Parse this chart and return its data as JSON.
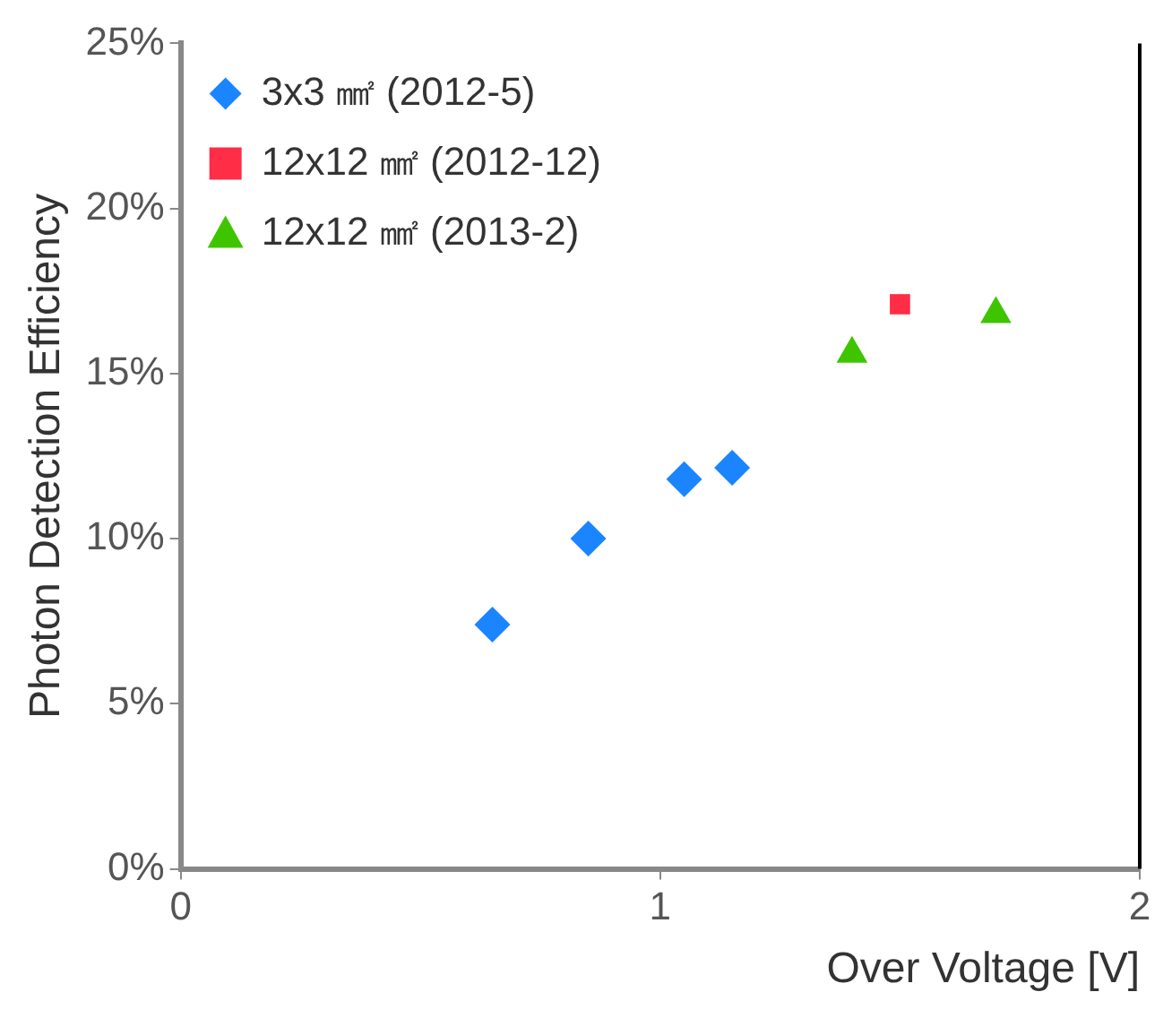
{
  "chart_data": {
    "type": "scatter",
    "xlabel": "Over Voltage [V]",
    "ylabel": "Photon Detection Efficiency",
    "xlim": [
      0,
      2
    ],
    "xticks": [
      0,
      1,
      2
    ],
    "ylim": [
      0,
      25
    ],
    "yticks": [
      {
        "value": 0,
        "label": "0%"
      },
      {
        "value": 5,
        "label": "5%"
      },
      {
        "value": 10,
        "label": "10%"
      },
      {
        "value": 15,
        "label": "15%"
      },
      {
        "value": 20,
        "label": "20%"
      },
      {
        "value": 25,
        "label": "25%"
      }
    ],
    "grid": false,
    "legend": "top left",
    "series": [
      {
        "name": "3x3 ㎟ (2012-5)",
        "color": "#1a85ff",
        "marker": "diamond",
        "x": [
          0.65,
          0.85,
          1.05,
          1.15
        ],
        "values": [
          7.4,
          10.0,
          11.8,
          12.15
        ]
      },
      {
        "name": "12x12 ㎟ (2012-12)",
        "color": "#ff2d45",
        "marker": "square",
        "x": [
          1.5
        ],
        "values": [
          17.1
        ]
      },
      {
        "name": "12x12 ㎟ (2013-2)",
        "color": "#3fc400",
        "marker": "triangle",
        "x": [
          1.4,
          1.7
        ],
        "values": [
          15.6,
          16.8
        ]
      }
    ]
  }
}
